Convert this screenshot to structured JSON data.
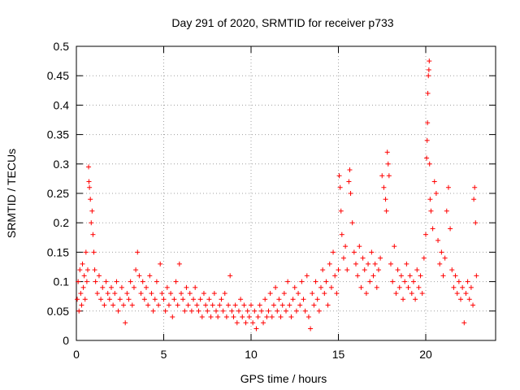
{
  "chart_data": {
    "type": "scatter",
    "title": "Day 291 of 2020, SRMTID for receiver p733",
    "xlabel": "GPS time / hours",
    "ylabel": "SRMTID / TECUs",
    "xlim": [
      0,
      24
    ],
    "ylim": [
      0,
      0.5
    ],
    "x_ticks": [
      0,
      5,
      10,
      15,
      20
    ],
    "x_tick_labels": [
      "0",
      "5",
      "10",
      "15",
      "20"
    ],
    "y_ticks": [
      0,
      0.05,
      0.1,
      0.15,
      0.2,
      0.25,
      0.3,
      0.35,
      0.4,
      0.45,
      0.5
    ],
    "y_tick_labels": [
      "0",
      "0.05",
      "0.1",
      "0.15",
      "0.2",
      "0.25",
      "0.3",
      "0.35",
      "0.4",
      "0.45",
      "0.5"
    ],
    "grid": true,
    "marker": "+",
    "color": "#ff0000",
    "series": [
      {
        "name": "SRMTID",
        "points": [
          [
            0.05,
            0.07
          ],
          [
            0.1,
            0.1
          ],
          [
            0.15,
            0.05
          ],
          [
            0.2,
            0.12
          ],
          [
            0.25,
            0.08
          ],
          [
            0.3,
            0.06
          ],
          [
            0.35,
            0.13
          ],
          [
            0.4,
            0.09
          ],
          [
            0.45,
            0.11
          ],
          [
            0.5,
            0.07
          ],
          [
            0.55,
            0.15
          ],
          [
            0.6,
            0.1
          ],
          [
            0.65,
            0.12
          ],
          [
            0.7,
            0.295
          ],
          [
            0.72,
            0.27
          ],
          [
            0.75,
            0.26
          ],
          [
            0.8,
            0.24
          ],
          [
            0.85,
            0.2
          ],
          [
            0.9,
            0.22
          ],
          [
            0.95,
            0.18
          ],
          [
            1.0,
            0.15
          ],
          [
            1.05,
            0.12
          ],
          [
            1.1,
            0.1
          ],
          [
            1.2,
            0.08
          ],
          [
            1.3,
            0.11
          ],
          [
            1.4,
            0.07
          ],
          [
            1.5,
            0.09
          ],
          [
            1.6,
            0.06
          ],
          [
            1.7,
            0.1
          ],
          [
            1.8,
            0.08
          ],
          [
            1.9,
            0.07
          ],
          [
            2.0,
            0.09
          ],
          [
            2.1,
            0.06
          ],
          [
            2.2,
            0.08
          ],
          [
            2.3,
            0.1
          ],
          [
            2.4,
            0.05
          ],
          [
            2.5,
            0.07
          ],
          [
            2.6,
            0.09
          ],
          [
            2.7,
            0.06
          ],
          [
            2.8,
            0.03
          ],
          [
            2.9,
            0.08
          ],
          [
            3.0,
            0.07
          ],
          [
            3.1,
            0.1
          ],
          [
            3.2,
            0.06
          ],
          [
            3.3,
            0.09
          ],
          [
            3.4,
            0.12
          ],
          [
            3.5,
            0.15
          ],
          [
            3.6,
            0.11
          ],
          [
            3.7,
            0.08
          ],
          [
            3.8,
            0.1
          ],
          [
            3.9,
            0.07
          ],
          [
            4.0,
            0.09
          ],
          [
            4.1,
            0.06
          ],
          [
            4.2,
            0.11
          ],
          [
            4.3,
            0.08
          ],
          [
            4.4,
            0.05
          ],
          [
            4.5,
            0.07
          ],
          [
            4.6,
            0.1
          ],
          [
            4.7,
            0.06
          ],
          [
            4.8,
            0.13
          ],
          [
            4.9,
            0.08
          ],
          [
            5.0,
            0.07
          ],
          [
            5.1,
            0.05
          ],
          [
            5.2,
            0.09
          ],
          [
            5.3,
            0.06
          ],
          [
            5.4,
            0.08
          ],
          [
            5.5,
            0.04
          ],
          [
            5.6,
            0.07
          ],
          [
            5.7,
            0.1
          ],
          [
            5.8,
            0.06
          ],
          [
            5.9,
            0.13
          ],
          [
            6.0,
            0.08
          ],
          [
            6.1,
            0.07
          ],
          [
            6.2,
            0.05
          ],
          [
            6.3,
            0.09
          ],
          [
            6.4,
            0.06
          ],
          [
            6.5,
            0.08
          ],
          [
            6.6,
            0.05
          ],
          [
            6.7,
            0.07
          ],
          [
            6.8,
            0.09
          ],
          [
            6.9,
            0.06
          ],
          [
            7.0,
            0.05
          ],
          [
            7.1,
            0.07
          ],
          [
            7.2,
            0.04
          ],
          [
            7.3,
            0.08
          ],
          [
            7.4,
            0.06
          ],
          [
            7.5,
            0.05
          ],
          [
            7.6,
            0.07
          ],
          [
            7.7,
            0.04
          ],
          [
            7.8,
            0.06
          ],
          [
            7.9,
            0.08
          ],
          [
            8.0,
            0.05
          ],
          [
            8.1,
            0.04
          ],
          [
            8.2,
            0.06
          ],
          [
            8.3,
            0.07
          ],
          [
            8.4,
            0.05
          ],
          [
            8.5,
            0.08
          ],
          [
            8.6,
            0.04
          ],
          [
            8.7,
            0.06
          ],
          [
            8.8,
            0.11
          ],
          [
            8.9,
            0.05
          ],
          [
            9.0,
            0.04
          ],
          [
            9.1,
            0.06
          ],
          [
            9.2,
            0.03
          ],
          [
            9.3,
            0.05
          ],
          [
            9.4,
            0.07
          ],
          [
            9.5,
            0.04
          ],
          [
            9.6,
            0.06
          ],
          [
            9.7,
            0.03
          ],
          [
            9.8,
            0.05
          ],
          [
            9.9,
            0.04
          ],
          [
            10.0,
            0.06
          ],
          [
            10.1,
            0.03
          ],
          [
            10.2,
            0.05
          ],
          [
            10.3,
            0.02
          ],
          [
            10.4,
            0.04
          ],
          [
            10.5,
            0.06
          ],
          [
            10.6,
            0.05
          ],
          [
            10.7,
            0.03
          ],
          [
            10.8,
            0.07
          ],
          [
            10.9,
            0.04
          ],
          [
            11.0,
            0.05
          ],
          [
            11.1,
            0.08
          ],
          [
            11.2,
            0.04
          ],
          [
            11.3,
            0.06
          ],
          [
            11.4,
            0.09
          ],
          [
            11.5,
            0.05
          ],
          [
            11.6,
            0.07
          ],
          [
            11.7,
            0.04
          ],
          [
            11.8,
            0.06
          ],
          [
            11.9,
            0.08
          ],
          [
            12.0,
            0.05
          ],
          [
            12.1,
            0.1
          ],
          [
            12.2,
            0.06
          ],
          [
            12.3,
            0.04
          ],
          [
            12.4,
            0.07
          ],
          [
            12.5,
            0.09
          ],
          [
            12.6,
            0.05
          ],
          [
            12.7,
            0.08
          ],
          [
            12.8,
            0.06
          ],
          [
            12.9,
            0.1
          ],
          [
            13.0,
            0.07
          ],
          [
            13.1,
            0.05
          ],
          [
            13.2,
            0.11
          ],
          [
            13.3,
            0.04
          ],
          [
            13.4,
            0.02
          ],
          [
            13.5,
            0.08
          ],
          [
            13.6,
            0.06
          ],
          [
            13.7,
            0.1
          ],
          [
            13.8,
            0.07
          ],
          [
            13.9,
            0.05
          ],
          [
            14.0,
            0.09
          ],
          [
            14.1,
            0.12
          ],
          [
            14.2,
            0.08
          ],
          [
            14.3,
            0.1
          ],
          [
            14.4,
            0.06
          ],
          [
            14.5,
            0.13
          ],
          [
            14.6,
            0.09
          ],
          [
            14.7,
            0.15
          ],
          [
            14.8,
            0.11
          ],
          [
            14.9,
            0.08
          ],
          [
            15.0,
            0.12
          ],
          [
            15.05,
            0.28
          ],
          [
            15.1,
            0.26
          ],
          [
            15.15,
            0.22
          ],
          [
            15.2,
            0.18
          ],
          [
            15.3,
            0.14
          ],
          [
            15.4,
            0.16
          ],
          [
            15.5,
            0.12
          ],
          [
            15.6,
            0.27
          ],
          [
            15.65,
            0.29
          ],
          [
            15.7,
            0.25
          ],
          [
            15.8,
            0.2
          ],
          [
            15.9,
            0.15
          ],
          [
            16.0,
            0.13
          ],
          [
            16.1,
            0.11
          ],
          [
            16.2,
            0.16
          ],
          [
            16.3,
            0.09
          ],
          [
            16.4,
            0.14
          ],
          [
            16.5,
            0.12
          ],
          [
            16.6,
            0.08
          ],
          [
            16.7,
            0.13
          ],
          [
            16.8,
            0.1
          ],
          [
            16.9,
            0.15
          ],
          [
            17.0,
            0.11
          ],
          [
            17.1,
            0.13
          ],
          [
            17.2,
            0.09
          ],
          [
            17.3,
            0.12
          ],
          [
            17.4,
            0.14
          ],
          [
            17.5,
            0.28
          ],
          [
            17.6,
            0.26
          ],
          [
            17.7,
            0.24
          ],
          [
            17.75,
            0.22
          ],
          [
            17.8,
            0.32
          ],
          [
            17.85,
            0.3
          ],
          [
            17.9,
            0.28
          ],
          [
            18.0,
            0.13
          ],
          [
            18.1,
            0.1
          ],
          [
            18.2,
            0.16
          ],
          [
            18.3,
            0.08
          ],
          [
            18.4,
            0.12
          ],
          [
            18.5,
            0.09
          ],
          [
            18.6,
            0.11
          ],
          [
            18.7,
            0.07
          ],
          [
            18.8,
            0.1
          ],
          [
            18.9,
            0.13
          ],
          [
            19.0,
            0.09
          ],
          [
            19.1,
            0.11
          ],
          [
            19.2,
            0.08
          ],
          [
            19.3,
            0.1
          ],
          [
            19.4,
            0.07
          ],
          [
            19.5,
            0.12
          ],
          [
            19.6,
            0.09
          ],
          [
            19.7,
            0.11
          ],
          [
            19.8,
            0.08
          ],
          [
            19.9,
            0.14
          ],
          [
            20.0,
            0.18
          ],
          [
            20.05,
            0.31
          ],
          [
            20.08,
            0.34
          ],
          [
            20.1,
            0.37
          ],
          [
            20.12,
            0.42
          ],
          [
            20.15,
            0.45
          ],
          [
            20.18,
            0.46
          ],
          [
            20.2,
            0.475
          ],
          [
            20.22,
            0.3
          ],
          [
            20.25,
            0.24
          ],
          [
            20.3,
            0.22
          ],
          [
            20.4,
            0.19
          ],
          [
            20.5,
            0.27
          ],
          [
            20.6,
            0.25
          ],
          [
            20.7,
            0.17
          ],
          [
            20.8,
            0.13
          ],
          [
            20.9,
            0.15
          ],
          [
            21.0,
            0.11
          ],
          [
            21.1,
            0.14
          ],
          [
            21.2,
            0.22
          ],
          [
            21.3,
            0.26
          ],
          [
            21.4,
            0.19
          ],
          [
            21.5,
            0.12
          ],
          [
            21.6,
            0.09
          ],
          [
            21.7,
            0.11
          ],
          [
            21.8,
            0.08
          ],
          [
            21.9,
            0.1
          ],
          [
            22.0,
            0.07
          ],
          [
            22.1,
            0.09
          ],
          [
            22.2,
            0.03
          ],
          [
            22.3,
            0.08
          ],
          [
            22.4,
            0.1
          ],
          [
            22.5,
            0.07
          ],
          [
            22.6,
            0.09
          ],
          [
            22.7,
            0.06
          ],
          [
            22.75,
            0.24
          ],
          [
            22.8,
            0.26
          ],
          [
            22.85,
            0.2
          ],
          [
            22.9,
            0.11
          ]
        ]
      }
    ]
  }
}
